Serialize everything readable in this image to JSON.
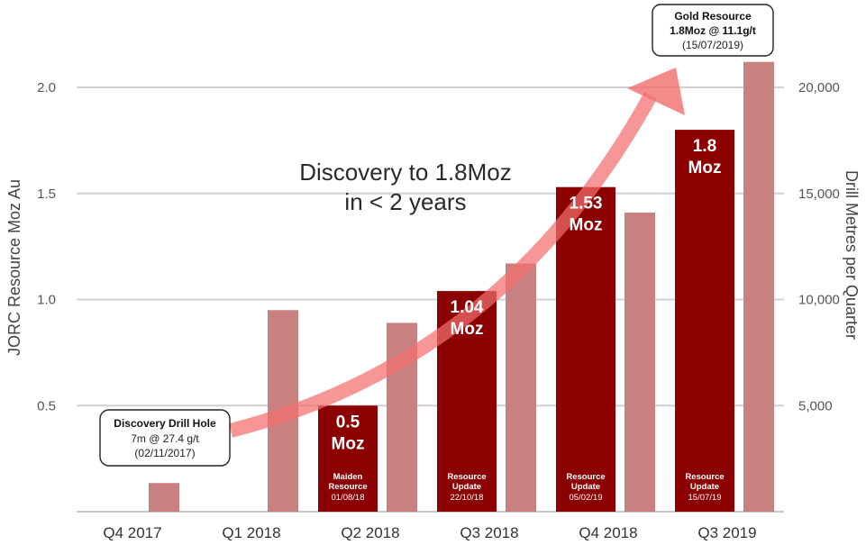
{
  "chart_data": {
    "type": "bar",
    "categories": [
      "Q4 2017",
      "Q1 2018",
      "Q2 2018",
      "Q3 2018",
      "Q4 2018",
      "Q3 2019"
    ],
    "ylabel": "JORC Resource Moz Au",
    "y2label": "Drill Metres per Quarter",
    "ylim": [
      0,
      2.0
    ],
    "y_ticks": [
      "0.5",
      "1.0",
      "1.5",
      "2.0"
    ],
    "y2lim": [
      0,
      20000
    ],
    "y2_ticks": [
      "5,000",
      "10,000",
      "15,000",
      "20,000"
    ],
    "grid": true,
    "resource_series": {
      "color": "#8b0000",
      "points": [
        {
          "category": "Q2 2018",
          "value": 0.5,
          "label": "0.5",
          "unit": "Moz",
          "note_lines": [
            "Maiden",
            "Resource"
          ],
          "date": "01/08/18"
        },
        {
          "category": "Q3 2018",
          "value": 1.04,
          "label": "1.04",
          "unit": "Moz",
          "note_lines": [
            "Resource",
            "Update"
          ],
          "date": "22/10/18"
        },
        {
          "category": "Q4 2018",
          "value": 1.53,
          "label": "1.53",
          "unit": "Moz",
          "note_lines": [
            "Resource",
            "Update"
          ],
          "date": "05/02/19"
        },
        {
          "category": "Q3 2019",
          "value": 1.8,
          "label": "1.8",
          "unit": "Moz",
          "note_lines": [
            "Resource",
            "Update"
          ],
          "date": "15/07/19"
        }
      ]
    },
    "drill_series": {
      "color": "#c98080",
      "values": [
        1350,
        9500,
        8900,
        11700,
        14100,
        21200
      ]
    },
    "annotations": {
      "headline": [
        "Discovery to 1.8Moz",
        "in < 2 years"
      ],
      "discovery": {
        "title": "Discovery Drill Hole",
        "lines": [
          "7m @ 27.4 g/t",
          "(02/11/2017)"
        ]
      },
      "gold": {
        "title_lines": [
          "Gold Resource",
          "1.8Moz @ 11.1g/t"
        ],
        "date": "(15/07/2019)"
      },
      "arrow_color": "#f26d6d"
    }
  }
}
